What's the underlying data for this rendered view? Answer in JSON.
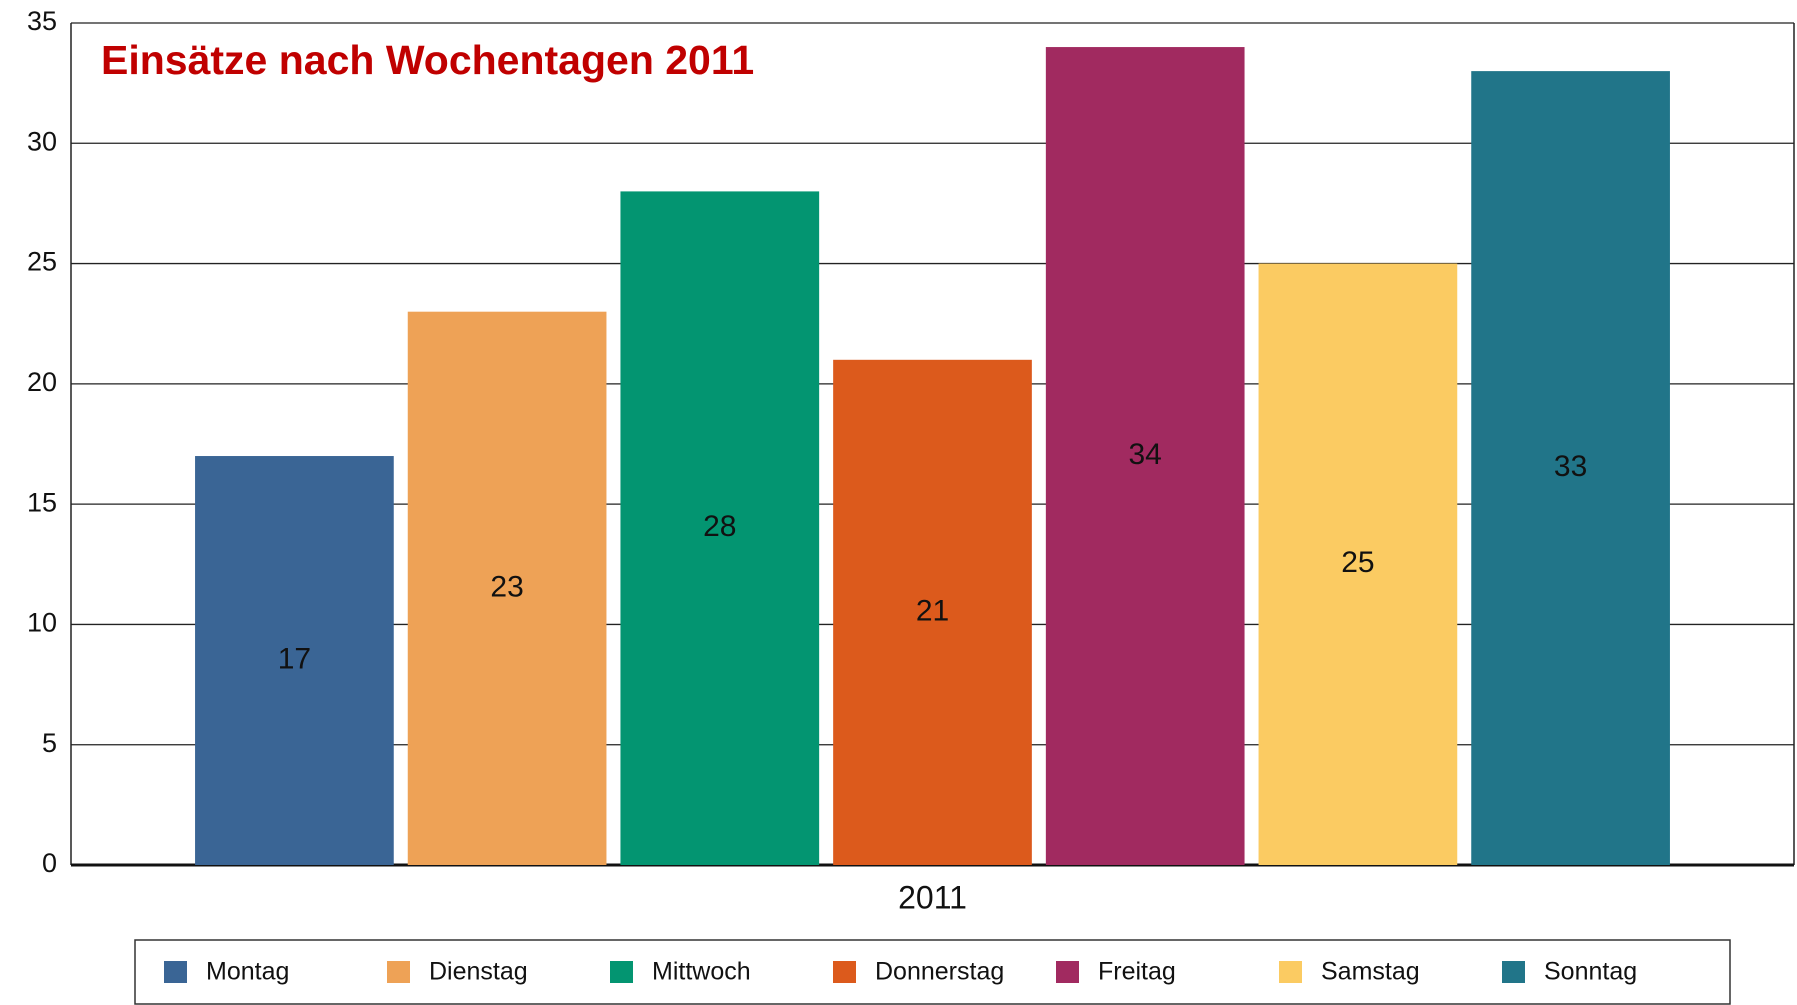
{
  "chart_data": {
    "type": "bar",
    "title": "Einsätze nach Wochentagen 2011",
    "categories": [
      "2011"
    ],
    "series": [
      {
        "name": "Montag",
        "color": "#3a6595",
        "values": [
          17
        ]
      },
      {
        "name": "Dienstag",
        "color": "#eea256",
        "values": [
          23
        ]
      },
      {
        "name": "Mittwoch",
        "color": "#039571",
        "values": [
          28
        ]
      },
      {
        "name": "Donnerstag",
        "color": "#dc5a1c",
        "values": [
          21
        ]
      },
      {
        "name": "Freitag",
        "color": "#a12a60",
        "values": [
          34
        ]
      },
      {
        "name": "Samstag",
        "color": "#fbcb62",
        "values": [
          25
        ]
      },
      {
        "name": "Sonntag",
        "color": "#217589",
        "values": [
          33
        ]
      }
    ],
    "ylim": [
      0,
      35
    ],
    "yticks": [
      0,
      5,
      10,
      15,
      20,
      25,
      30,
      35
    ],
    "grid": true,
    "legend": "bottom"
  }
}
